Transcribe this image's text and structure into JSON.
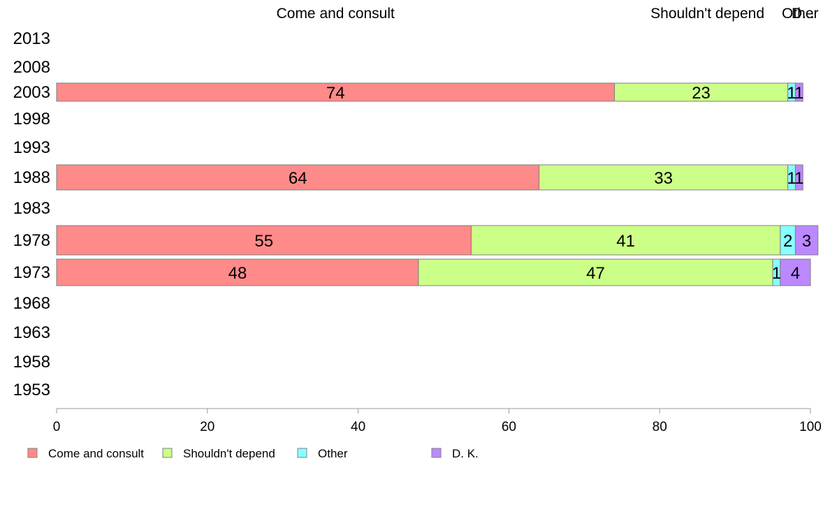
{
  "chart_data": {
    "type": "bar",
    "orientation": "horizontal",
    "stacked": true,
    "categories": [
      "2013",
      "2008",
      "2003",
      "1998",
      "1993",
      "1988",
      "1983",
      "1978",
      "1973",
      "1968",
      "1963",
      "1958",
      "1953"
    ],
    "series": [
      {
        "name": "Come and consult",
        "color": "#ff8a8a",
        "values": [
          null,
          null,
          74,
          null,
          null,
          64,
          null,
          55,
          48,
          null,
          null,
          null,
          null
        ]
      },
      {
        "name": "Shouldn't depend",
        "color": "#ccff88",
        "values": [
          null,
          null,
          23,
          null,
          null,
          33,
          null,
          41,
          47,
          null,
          null,
          null,
          null
        ]
      },
      {
        "name": "Other",
        "color": "#88ffff",
        "values": [
          null,
          null,
          1,
          null,
          null,
          1,
          null,
          2,
          1,
          null,
          null,
          null,
          null
        ]
      },
      {
        "name": "D. K.",
        "color": "#bb88ff",
        "values": [
          null,
          null,
          1,
          null,
          null,
          1,
          null,
          3,
          4,
          null,
          null,
          null,
          null
        ]
      }
    ],
    "top_labels": [
      "Come and consult",
      "Shouldn't depend",
      "Other",
      "D..."
    ],
    "xlim": [
      0,
      100
    ],
    "x_ticks": [
      0,
      20,
      40,
      60,
      80,
      100
    ],
    "xlabel": "",
    "ylabel": "",
    "grid": false,
    "legend_position": "bottom-left"
  }
}
